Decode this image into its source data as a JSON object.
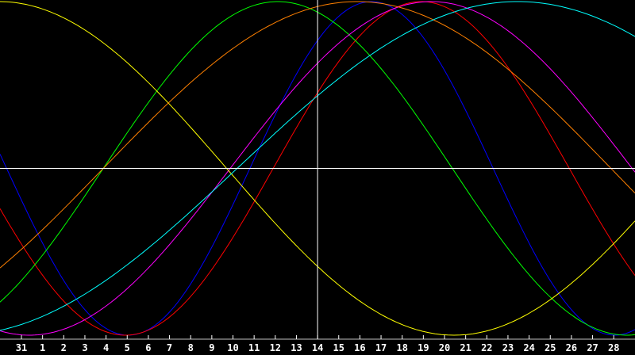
{
  "chart_data": {
    "type": "line",
    "title": "",
    "xlabel": "",
    "ylabel": "",
    "x_tick_labels": [
      "31",
      "1",
      "2",
      "3",
      "4",
      "5",
      "6",
      "7",
      "8",
      "9",
      "10",
      "11",
      "12",
      "13",
      "14",
      "15",
      "16",
      "17",
      "18",
      "19",
      "20",
      "21",
      "22",
      "23",
      "24",
      "25",
      "26",
      "27",
      "28"
    ],
    "ylim": [
      -100,
      100
    ],
    "grid": false,
    "marker_day": "14",
    "background": "#000000",
    "series": [
      {
        "color": "#0000ff",
        "period_days": 23,
        "rising_zero_day_index": 10.8
      },
      {
        "color": "#ff0000",
        "period_days": 28,
        "rising_zero_day_index": 11.9
      },
      {
        "color": "#00ff00",
        "period_days": 33,
        "rising_zero_day_index": 3.87
      },
      {
        "color": "#ff00ff",
        "period_days": 38,
        "rising_zero_day_index": 9.87
      },
      {
        "color": "#ffff00",
        "period_days": 43,
        "rising_zero_day_index": -11.8
      },
      {
        "color": "#ff8000",
        "period_days": 48,
        "rising_zero_day_index": 3.87
      },
      {
        "color": "#00ffff",
        "period_days": 53,
        "rising_zero_day_index": 10.2
      }
    ]
  }
}
